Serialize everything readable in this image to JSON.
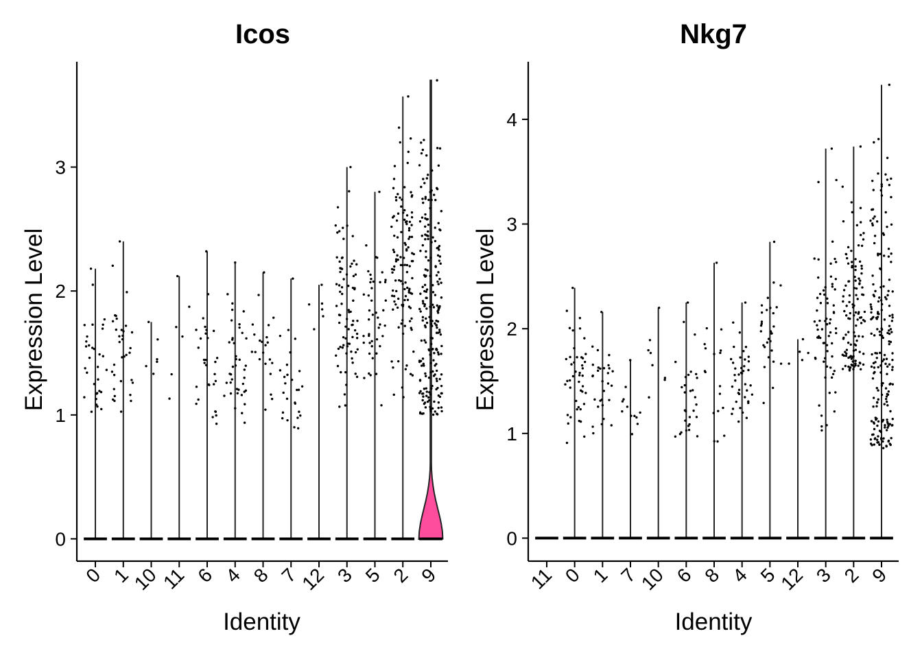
{
  "chart_data": [
    {
      "type": "violin",
      "title": "Icos",
      "xlabel": "Identity",
      "ylabel": "Expression Level",
      "ylim": [
        -0.18,
        3.85
      ],
      "yticks": [
        0,
        1,
        2,
        3
      ],
      "highlight_color": "#FF4D9E",
      "categories": [
        "0",
        "1",
        "10",
        "11",
        "6",
        "4",
        "8",
        "7",
        "12",
        "3",
        "5",
        "2",
        "9"
      ],
      "series": [
        {
          "category": "0",
          "max": 2.18,
          "expressing_cells": 32,
          "points_range": [
            0.9,
            2.18
          ],
          "points_center": 1.4
        },
        {
          "category": "1",
          "max": 2.4,
          "expressing_cells": 34,
          "points_range": [
            0.8,
            2.4
          ],
          "points_center": 1.5
        },
        {
          "category": "10",
          "max": 1.75,
          "expressing_cells": 6,
          "points_range": [
            1.3,
            1.75
          ],
          "points_center": 1.45
        },
        {
          "category": "11",
          "max": 2.12,
          "expressing_cells": 6,
          "points_range": [
            0.8,
            2.12
          ],
          "points_center": 1.7
        },
        {
          "category": "6",
          "max": 2.32,
          "expressing_cells": 30,
          "points_range": [
            0.9,
            2.32
          ],
          "points_center": 1.35
        },
        {
          "category": "4",
          "max": 2.23,
          "expressing_cells": 40,
          "points_range": [
            0.86,
            2.23
          ],
          "points_center": 1.35
        },
        {
          "category": "8",
          "max": 2.15,
          "expressing_cells": 22,
          "points_range": [
            0.87,
            2.15
          ],
          "points_center": 1.4
        },
        {
          "category": "7",
          "max": 2.1,
          "expressing_cells": 28,
          "points_range": [
            0.87,
            2.1
          ],
          "points_center": 1.25
        },
        {
          "category": "12",
          "max": 2.05,
          "expressing_cells": 6,
          "points_range": [
            1.35,
            2.05
          ],
          "points_center": 1.8
        },
        {
          "category": "3",
          "max": 3.0,
          "expressing_cells": 80,
          "points_range": [
            0.96,
            3.0
          ],
          "points_center": 1.8
        },
        {
          "category": "5",
          "max": 2.8,
          "expressing_cells": 45,
          "points_range": [
            0.96,
            2.8
          ],
          "points_center": 1.85
        },
        {
          "category": "2",
          "max": 3.57,
          "expressing_cells": 120,
          "points_range": [
            1.1,
            3.57
          ],
          "points_center": 2.2
        },
        {
          "category": "9",
          "max": 3.7,
          "expressing_cells": 220,
          "points_range": [
            1.0,
            3.7
          ],
          "points_center": 1.8,
          "violin": true
        }
      ]
    },
    {
      "type": "violin",
      "title": "Nkg7",
      "xlabel": "Identity",
      "ylabel": "Expression Level",
      "ylim": [
        -0.22,
        4.55
      ],
      "yticks": [
        0,
        1,
        2,
        3,
        4
      ],
      "categories": [
        "11",
        "0",
        "1",
        "7",
        "10",
        "6",
        "8",
        "4",
        "5",
        "12",
        "3",
        "2",
        "9"
      ],
      "series": [
        {
          "category": "11",
          "max": 0,
          "expressing_cells": 0,
          "points_range": [
            0,
            0
          ],
          "points_center": 0
        },
        {
          "category": "0",
          "max": 2.39,
          "expressing_cells": 45,
          "points_range": [
            0.88,
            2.39
          ],
          "points_center": 1.45
        },
        {
          "category": "1",
          "max": 2.16,
          "expressing_cells": 30,
          "points_range": [
            0.85,
            2.16
          ],
          "points_center": 1.45
        },
        {
          "category": "7",
          "max": 1.7,
          "expressing_cells": 12,
          "points_range": [
            0.88,
            1.7
          ],
          "points_center": 1.2
        },
        {
          "category": "10",
          "max": 2.2,
          "expressing_cells": 8,
          "points_range": [
            1.25,
            2.2
          ],
          "points_center": 1.6
        },
        {
          "category": "6",
          "max": 2.25,
          "expressing_cells": 30,
          "points_range": [
            0.95,
            2.25
          ],
          "points_center": 1.35
        },
        {
          "category": "8",
          "max": 2.63,
          "expressing_cells": 18,
          "points_range": [
            0.9,
            2.63
          ],
          "points_center": 1.5
        },
        {
          "category": "4",
          "max": 2.25,
          "expressing_cells": 40,
          "points_range": [
            1.05,
            2.25
          ],
          "points_center": 1.5
        },
        {
          "category": "5",
          "max": 2.83,
          "expressing_cells": 30,
          "points_range": [
            1.06,
            2.83
          ],
          "points_center": 1.9
        },
        {
          "category": "12",
          "max": 1.9,
          "expressing_cells": 5,
          "points_range": [
            1.45,
            1.9
          ],
          "points_center": 1.7
        },
        {
          "category": "3",
          "max": 3.72,
          "expressing_cells": 70,
          "points_range": [
            0.95,
            3.72
          ],
          "points_center": 2.0
        },
        {
          "category": "2",
          "max": 3.74,
          "expressing_cells": 120,
          "points_range": [
            1.6,
            3.74
          ],
          "points_center": 2.2
        },
        {
          "category": "9",
          "max": 4.33,
          "expressing_cells": 200,
          "points_range": [
            0.86,
            4.33
          ],
          "points_center": 1.8
        }
      ]
    }
  ]
}
